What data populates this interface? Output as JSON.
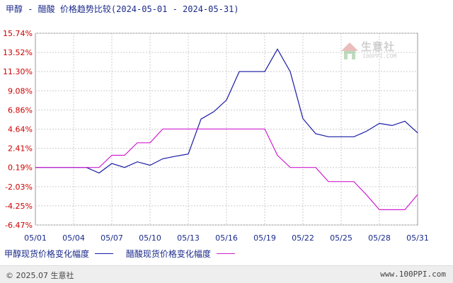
{
  "chart_data": {
    "type": "line",
    "title": "甲醇 - 醋酸 价格趋势比较(2024-05-01 - 2024-05-31)",
    "y_tick_labels": [
      "15.74%",
      "13.52%",
      "11.30%",
      "9.08%",
      "6.86%",
      "4.64%",
      "2.41%",
      "0.19%",
      "-2.03%",
      "-4.25%",
      "-6.47%"
    ],
    "y_ticks": [
      15.74,
      13.52,
      11.3,
      9.08,
      6.86,
      4.64,
      2.41,
      0.19,
      -2.03,
      -4.25,
      -6.47
    ],
    "ylim": [
      -6.47,
      15.74
    ],
    "x_tick_labels": [
      "05/01",
      "05/04",
      "05/07",
      "05/10",
      "05/13",
      "05/16",
      "05/19",
      "05/22",
      "05/25",
      "05/28",
      "05/31"
    ],
    "x_tick_days": [
      1,
      4,
      7,
      10,
      13,
      16,
      19,
      22,
      25,
      28,
      31
    ],
    "xlim": [
      1,
      31
    ],
    "grid": true,
    "legend_position": "bottom-left",
    "series": [
      {
        "name": "甲醇现货价格变化幅度",
        "color": "#1a1aa6",
        "x": [
          1,
          2,
          3,
          4,
          5,
          6,
          7,
          8,
          9,
          10,
          11,
          12,
          13,
          14,
          15,
          16,
          17,
          18,
          19,
          20,
          21,
          22,
          23,
          24,
          25,
          26,
          27,
          28,
          29,
          30,
          31
        ],
        "values": [
          0.19,
          0.19,
          0.19,
          0.19,
          0.19,
          -0.45,
          0.65,
          0.19,
          0.85,
          0.45,
          1.2,
          1.5,
          1.75,
          5.8,
          6.65,
          8.0,
          11.3,
          11.3,
          11.3,
          13.9,
          11.3,
          5.85,
          4.1,
          3.75,
          3.75,
          3.75,
          4.4,
          5.3,
          5.05,
          5.55,
          4.2
        ]
      },
      {
        "name": "醋酸现货价格变化幅度",
        "color": "#d020d0",
        "x": [
          1,
          2,
          3,
          4,
          5,
          6,
          7,
          8,
          9,
          10,
          11,
          12,
          13,
          14,
          15,
          16,
          17,
          18,
          19,
          20,
          21,
          22,
          23,
          24,
          25,
          26,
          27,
          28,
          29,
          30,
          31
        ],
        "values": [
          0.19,
          0.19,
          0.19,
          0.19,
          0.19,
          0.19,
          1.6,
          1.6,
          3.05,
          3.05,
          4.65,
          4.65,
          4.65,
          4.65,
          4.65,
          4.65,
          4.65,
          4.65,
          4.65,
          1.6,
          0.19,
          0.19,
          0.19,
          -1.45,
          -1.45,
          -1.45,
          -3.0,
          -4.7,
          -4.7,
          -4.7,
          -2.95
        ]
      }
    ]
  },
  "legend": {
    "items": [
      {
        "label": "甲醇现货价格变化幅度",
        "color": "#1a1aa6"
      },
      {
        "label": "醋酸现货价格变化幅度",
        "color": "#d020d0"
      }
    ]
  },
  "watermark": {
    "name": "生意社",
    "url": "100PPI.COM"
  },
  "footer": {
    "copyright": "© 2025.07 生意社",
    "site": "www.100PPI.com"
  },
  "colors": {
    "axis_label": "#cc0000",
    "x_label": "#1a2a8a",
    "grid": "#cccccc"
  }
}
